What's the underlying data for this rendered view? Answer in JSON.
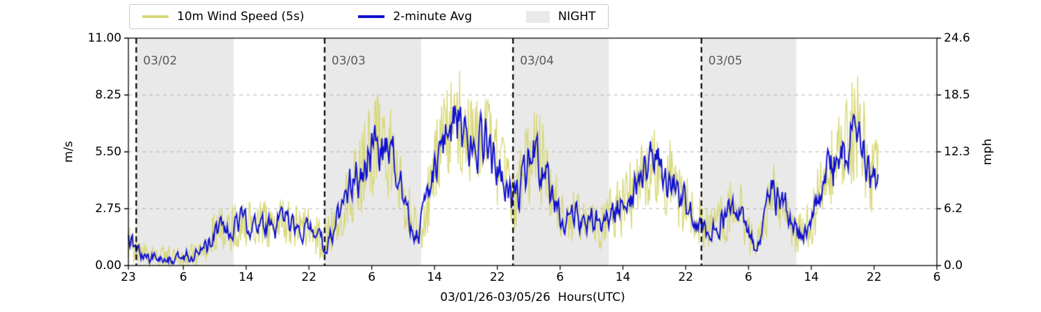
{
  "figure": {
    "background": "#ffffff",
    "night_color": "#e9e9e9",
    "grid_color": "#b0b0b0",
    "day_line_color": "#000000",
    "day_label_color": "#5a5a5a",
    "axis_color": "#000000"
  },
  "legend": {
    "items": [
      {
        "label": "10m Wind Speed (5s)",
        "swatch": "line",
        "color": "#d8d87a"
      },
      {
        "label": "2-minute Avg",
        "swatch": "line",
        "color": "#1010d0"
      },
      {
        "label": "NIGHT",
        "swatch": "patch",
        "color": "#e9e9e9"
      }
    ]
  },
  "axes": {
    "left_label": "m/s",
    "right_label": "mph",
    "x_label": "03/01/26-03/05/26  Hours(UTC)"
  },
  "chart_data": {
    "type": "line",
    "title": "",
    "xlabel": "03/01/26-03/05/26  Hours(UTC)",
    "ylabel_left": "m/s",
    "ylabel_right": "mph",
    "grid": true,
    "legend_position": "top-left-outside",
    "x_axis": {
      "unit": "hours UTC from 03/01/26 23:00",
      "range_hours": [
        0,
        103
      ],
      "tick_hours": [
        0,
        7,
        15,
        23,
        31,
        39,
        47,
        55,
        63,
        71,
        79,
        87,
        95,
        103
      ],
      "tick_labels": [
        "23",
        "6",
        "14",
        "22",
        "6",
        "14",
        "22",
        "6",
        "14",
        "22",
        "6",
        "14",
        "22",
        "6"
      ]
    },
    "y_axis_left": {
      "label": "m/s",
      "range": [
        0,
        11
      ],
      "ticks": [
        0,
        2.75,
        5.5,
        8.25,
        11
      ],
      "tick_labels": [
        "0.00",
        "2.75",
        "5.50",
        "8.25",
        "11.00"
      ]
    },
    "y_axis_right": {
      "label": "mph",
      "range": [
        0,
        24.6
      ],
      "ticks": [
        0,
        6.2,
        12.3,
        18.5,
        24.6
      ],
      "tick_labels": [
        "0.0",
        "6.2",
        "12.3",
        "18.5",
        "24.6"
      ]
    },
    "day_markers": [
      {
        "hour": 1,
        "label": "03/02"
      },
      {
        "hour": 25,
        "label": "03/03"
      },
      {
        "hour": 49,
        "label": "03/04"
      },
      {
        "hour": 73,
        "label": "03/05"
      }
    ],
    "night_bands": [
      [
        1,
        13.4
      ],
      [
        25,
        37.3
      ],
      [
        49,
        61.2
      ],
      [
        73,
        85.1
      ]
    ],
    "series": [
      {
        "name": "10m Wind Speed (5s)",
        "color": "#d8d87a",
        "style": "noisy-raw",
        "noise_scale": 1.0
      },
      {
        "name": "2-minute Avg",
        "color": "#1010d0",
        "style": "noisy-smooth",
        "noise_scale": 0.8
      }
    ],
    "sample_step_hours": 1,
    "data_end_hour": 95.5,
    "noise_seed": 987654321,
    "avg_ms": [
      1.2,
      0.9,
      0.5,
      0.35,
      0.3,
      0.4,
      0.3,
      0.35,
      0.6,
      0.5,
      1.0,
      1.6,
      1.9,
      1.7,
      2.0,
      2.2,
      1.9,
      2.1,
      1.8,
      2.0,
      2.2,
      1.9,
      1.7,
      1.8,
      1.5,
      1.1,
      1.8,
      2.6,
      3.4,
      4.2,
      4.8,
      5.6,
      6.1,
      5.6,
      4.8,
      3.4,
      2.2,
      1.3,
      3.0,
      4.6,
      5.8,
      6.5,
      7.5,
      6.2,
      6.0,
      6.2,
      5.6,
      5.0,
      4.0,
      2.9,
      3.8,
      5.0,
      5.5,
      4.6,
      3.4,
      2.6,
      2.2,
      2.4,
      2.1,
      2.3,
      2.0,
      2.4,
      2.6,
      3.0,
      3.4,
      3.8,
      4.4,
      5.0,
      4.6,
      4.2,
      3.6,
      3.0,
      2.4,
      2.0,
      1.8,
      2.0,
      2.4,
      2.8,
      2.6,
      1.6,
      0.5,
      2.4,
      3.7,
      3.4,
      2.4,
      1.7,
      1.5,
      2.2,
      3.4,
      4.4,
      5.2,
      5.6,
      6.3,
      6.8,
      5.4,
      4.3,
      3.9
    ],
    "spread_ms": [
      0.9,
      0.8,
      0.7,
      0.6,
      0.6,
      0.6,
      0.6,
      0.6,
      0.7,
      0.7,
      0.85,
      1.0,
      1.1,
      1.1,
      1.2,
      1.3,
      1.1,
      1.2,
      1.1,
      1.2,
      1.3,
      1.1,
      1.1,
      1.1,
      1.0,
      0.9,
      1.1,
      1.4,
      1.7,
      2.0,
      2.2,
      2.4,
      2.5,
      2.4,
      2.2,
      1.7,
      1.3,
      0.9,
      1.6,
      2.1,
      2.4,
      2.6,
      2.6,
      2.5,
      2.5,
      2.5,
      2.4,
      2.2,
      1.9,
      1.5,
      1.8,
      2.2,
      2.4,
      2.1,
      1.7,
      1.4,
      1.3,
      1.3,
      1.2,
      1.3,
      1.2,
      1.3,
      1.4,
      1.6,
      1.7,
      1.8,
      2.0,
      2.2,
      2.1,
      2.0,
      1.8,
      1.6,
      1.3,
      1.2,
      1.1,
      1.2,
      1.3,
      1.5,
      1.4,
      1.0,
      0.7,
      1.3,
      1.8,
      1.7,
      1.3,
      1.1,
      1.0,
      1.3,
      1.7,
      2.0,
      2.3,
      2.4,
      2.5,
      2.6,
      2.3,
      2.0,
      1.9
    ]
  }
}
